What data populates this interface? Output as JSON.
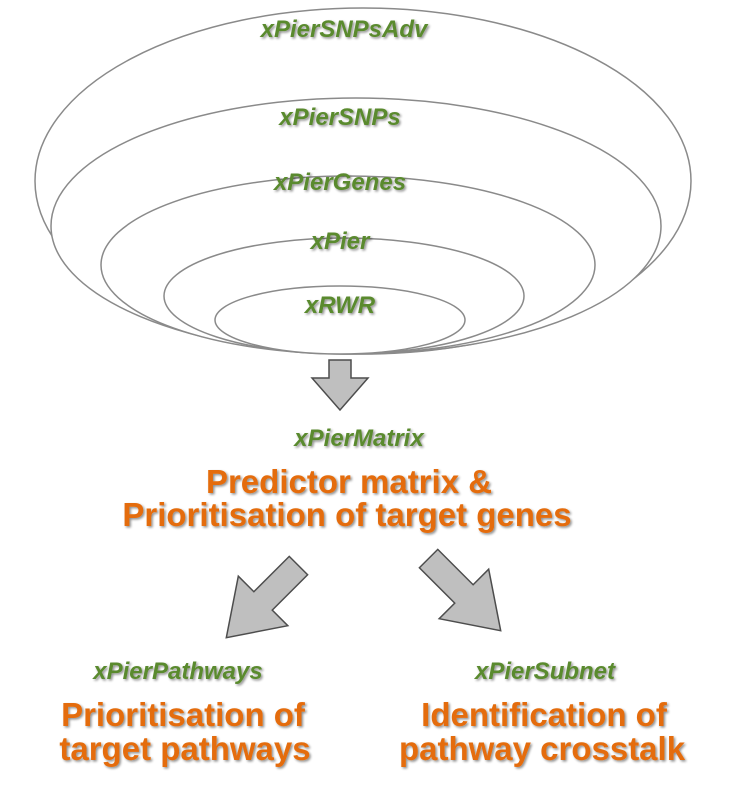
{
  "rings": [
    {
      "label": "xPierSNPsAdv"
    },
    {
      "label": "xPierSNPs"
    },
    {
      "label": "xPierGenes"
    },
    {
      "label": "xPier"
    },
    {
      "label": "xRWR"
    }
  ],
  "matrix": {
    "function_name": "xPierMatrix",
    "title_line1": "Predictor matrix &",
    "title_line2": "Prioritisation of target genes"
  },
  "pathways": {
    "function_name": "xPierPathways",
    "title_line1": "Prioritisation of",
    "title_line2": "target pathways"
  },
  "subnet": {
    "function_name": "xPierSubnet",
    "title_line1": "Identification of",
    "title_line2": "pathway crosstalk"
  },
  "colors": {
    "function_label": "#5a8a2e",
    "title": "#e46c0a",
    "arrow_fill": "#bfbfbf",
    "arrow_stroke": "#4d4d4d",
    "ring_stroke": "#8a8a8a"
  }
}
